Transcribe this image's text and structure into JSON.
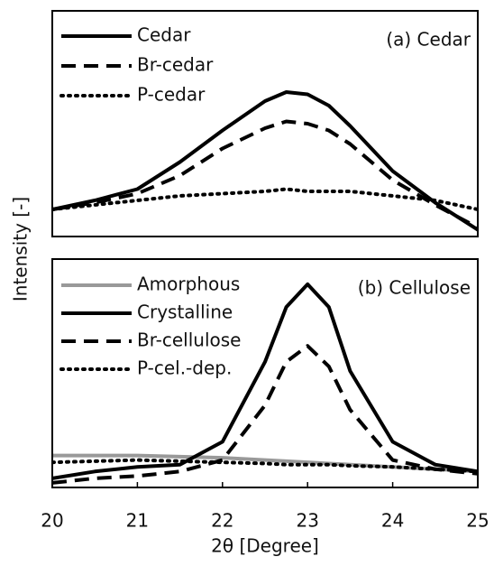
{
  "chart_data": [
    {
      "type": "line",
      "title": "(a) Cedar",
      "ylabel": "Intensity [-]",
      "x": [
        20,
        20.5,
        21,
        21.5,
        22,
        22.5,
        22.75,
        23,
        23.25,
        23.5,
        24,
        24.5,
        25
      ],
      "xlim": [
        20,
        25
      ],
      "ylim": [
        0,
        1
      ],
      "series": [
        {
          "name": "Cedar",
          "color": "#000000",
          "style": "solid",
          "values": [
            0.12,
            0.16,
            0.21,
            0.33,
            0.47,
            0.6,
            0.64,
            0.63,
            0.58,
            0.49,
            0.29,
            0.15,
            0.03
          ]
        },
        {
          "name": "Br-cedar",
          "color": "#000000",
          "style": "dashed",
          "values": [
            0.12,
            0.15,
            0.19,
            0.27,
            0.39,
            0.48,
            0.51,
            0.5,
            0.47,
            0.41,
            0.25,
            0.14,
            0.04
          ]
        },
        {
          "name": "P-cedar",
          "color": "#000000",
          "style": "dotted",
          "values": [
            0.12,
            0.14,
            0.16,
            0.18,
            0.19,
            0.2,
            0.21,
            0.2,
            0.2,
            0.2,
            0.18,
            0.16,
            0.12
          ]
        }
      ]
    },
    {
      "type": "line",
      "title": "(b) Cellulose",
      "xlabel": "2θ [Degree]",
      "x": [
        20,
        20.5,
        21,
        21.5,
        22,
        22.5,
        22.75,
        23,
        23.25,
        23.5,
        24,
        24.5,
        25
      ],
      "xlim": [
        20,
        25
      ],
      "ylim": [
        0,
        1
      ],
      "xticks": [
        20,
        21,
        22,
        23,
        24,
        25
      ],
      "series": [
        {
          "name": "Amorphous",
          "color": "#999999",
          "style": "solid",
          "values": [
            0.14,
            0.14,
            0.14,
            0.135,
            0.13,
            0.12,
            0.115,
            0.11,
            0.105,
            0.1,
            0.09,
            0.08,
            0.07
          ]
        },
        {
          "name": "Crystalline",
          "color": "#000000",
          "style": "solid",
          "values": [
            0.04,
            0.07,
            0.09,
            0.1,
            0.2,
            0.55,
            0.79,
            0.89,
            0.79,
            0.51,
            0.2,
            0.1,
            0.07
          ]
        },
        {
          "name": "Br-cellulose",
          "color": "#000000",
          "style": "dashed",
          "values": [
            0.02,
            0.04,
            0.05,
            0.07,
            0.12,
            0.36,
            0.55,
            0.62,
            0.53,
            0.34,
            0.12,
            0.08,
            0.06
          ]
        },
        {
          "name": "P-cel.-dep.",
          "color": "#000000",
          "style": "dotted",
          "values": [
            0.11,
            0.115,
            0.12,
            0.115,
            0.11,
            0.105,
            0.1,
            0.1,
            0.1,
            0.095,
            0.09,
            0.08,
            0.07
          ]
        }
      ]
    }
  ]
}
